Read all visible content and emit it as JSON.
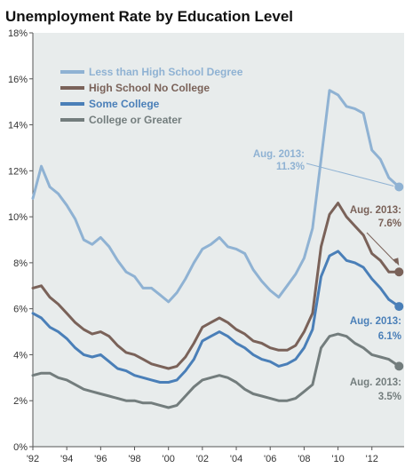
{
  "chart_data": {
    "type": "line",
    "title": "Unemployment Rate by Education Level",
    "xlabel": "",
    "ylabel": "",
    "xlim": [
      1992,
      2013.9
    ],
    "ylim": [
      0,
      18
    ],
    "y_ticks": [
      0,
      2,
      4,
      6,
      8,
      10,
      12,
      14,
      16,
      18
    ],
    "y_tick_labels": [
      "0%",
      "2%",
      "4%",
      "6%",
      "8%",
      "10%",
      "12%",
      "14%",
      "16%",
      "18%"
    ],
    "x_ticks": [
      1992,
      1994,
      1996,
      1998,
      2000,
      2002,
      2004,
      2006,
      2008,
      2010,
      2012
    ],
    "x_tick_labels": [
      "'92",
      "'94",
      "'96",
      "'98",
      "'00",
      "'02",
      "'04",
      "'06",
      "'08",
      "'10",
      "'12"
    ],
    "grid": false,
    "legend_position": "top-left",
    "series": [
      {
        "name": "Less than High School Degree",
        "color": "#8fb2d3",
        "x": [
          1992,
          1992.5,
          1993,
          1993.5,
          1994,
          1994.5,
          1995,
          1995.5,
          1996,
          1996.5,
          1997,
          1997.5,
          1998,
          1998.5,
          1999,
          1999.5,
          2000,
          2000.5,
          2001,
          2001.5,
          2002,
          2002.5,
          2003,
          2003.5,
          2004,
          2004.5,
          2005,
          2005.5,
          2006,
          2006.5,
          2007,
          2007.5,
          2008,
          2008.5,
          2009,
          2009.5,
          2010,
          2010.5,
          2011,
          2011.5,
          2012,
          2012.5,
          2013,
          2013.6
        ],
        "y": [
          10.8,
          12.2,
          11.3,
          11.0,
          10.5,
          9.9,
          9.0,
          8.8,
          9.1,
          8.7,
          8.1,
          7.6,
          7.4,
          6.9,
          6.9,
          6.6,
          6.3,
          6.7,
          7.3,
          8.0,
          8.6,
          8.8,
          9.1,
          8.7,
          8.6,
          8.4,
          7.7,
          7.2,
          6.8,
          6.5,
          7.0,
          7.5,
          8.2,
          9.5,
          12.5,
          15.5,
          15.3,
          14.8,
          14.7,
          14.5,
          12.9,
          12.5,
          11.7,
          11.3
        ]
      },
      {
        "name": "High School No College",
        "color": "#7a6259",
        "x": [
          1992,
          1992.5,
          1993,
          1993.5,
          1994,
          1994.5,
          1995,
          1995.5,
          1996,
          1996.5,
          1997,
          1997.5,
          1998,
          1998.5,
          1999,
          1999.5,
          2000,
          2000.5,
          2001,
          2001.5,
          2002,
          2002.5,
          2003,
          2003.5,
          2004,
          2004.5,
          2005,
          2005.5,
          2006,
          2006.5,
          2007,
          2007.5,
          2008,
          2008.5,
          2009,
          2009.5,
          2010,
          2010.5,
          2011,
          2011.5,
          2012,
          2012.5,
          2013,
          2013.6
        ],
        "y": [
          6.9,
          7.0,
          6.5,
          6.2,
          5.8,
          5.4,
          5.1,
          4.9,
          5.0,
          4.8,
          4.4,
          4.1,
          4.0,
          3.8,
          3.6,
          3.5,
          3.4,
          3.5,
          3.9,
          4.5,
          5.2,
          5.4,
          5.6,
          5.4,
          5.1,
          4.9,
          4.6,
          4.5,
          4.3,
          4.2,
          4.2,
          4.4,
          5.0,
          5.8,
          8.7,
          10.1,
          10.6,
          10.0,
          9.6,
          9.2,
          8.4,
          8.1,
          7.6,
          7.6
        ]
      },
      {
        "name": "Some College",
        "color": "#4a7fb8",
        "x": [
          1992,
          1992.5,
          1993,
          1993.5,
          1994,
          1994.5,
          1995,
          1995.5,
          1996,
          1996.5,
          1997,
          1997.5,
          1998,
          1998.5,
          1999,
          1999.5,
          2000,
          2000.5,
          2001,
          2001.5,
          2002,
          2002.5,
          2003,
          2003.5,
          2004,
          2004.5,
          2005,
          2005.5,
          2006,
          2006.5,
          2007,
          2007.5,
          2008,
          2008.5,
          2009,
          2009.5,
          2010,
          2010.5,
          2011,
          2011.5,
          2012,
          2012.5,
          2013,
          2013.6
        ],
        "y": [
          5.8,
          5.6,
          5.2,
          5.0,
          4.7,
          4.3,
          4.0,
          3.9,
          4.0,
          3.7,
          3.4,
          3.3,
          3.1,
          3.0,
          2.9,
          2.8,
          2.8,
          2.9,
          3.3,
          3.8,
          4.6,
          4.8,
          5.0,
          4.8,
          4.5,
          4.3,
          4.0,
          3.8,
          3.7,
          3.5,
          3.6,
          3.8,
          4.3,
          5.1,
          7.4,
          8.3,
          8.5,
          8.1,
          8.0,
          7.8,
          7.3,
          6.9,
          6.4,
          6.1
        ]
      },
      {
        "name": "College or Greater",
        "color": "#737d7d",
        "x": [
          1992,
          1992.5,
          1993,
          1993.5,
          1994,
          1994.5,
          1995,
          1995.5,
          1996,
          1996.5,
          1997,
          1997.5,
          1998,
          1998.5,
          1999,
          1999.5,
          2000,
          2000.5,
          2001,
          2001.5,
          2002,
          2002.5,
          2003,
          2003.5,
          2004,
          2004.5,
          2005,
          2005.5,
          2006,
          2006.5,
          2007,
          2007.5,
          2008,
          2008.5,
          2009,
          2009.5,
          2010,
          2010.5,
          2011,
          2011.5,
          2012,
          2012.5,
          2013,
          2013.6
        ],
        "y": [
          3.1,
          3.2,
          3.2,
          3.0,
          2.9,
          2.7,
          2.5,
          2.4,
          2.3,
          2.2,
          2.1,
          2.0,
          2.0,
          1.9,
          1.9,
          1.8,
          1.7,
          1.8,
          2.2,
          2.6,
          2.9,
          3.0,
          3.1,
          3.0,
          2.8,
          2.5,
          2.3,
          2.2,
          2.1,
          2.0,
          2.0,
          2.1,
          2.4,
          2.7,
          4.3,
          4.8,
          4.9,
          4.8,
          4.5,
          4.3,
          4.0,
          3.9,
          3.8,
          3.5
        ]
      }
    ],
    "annotations": [
      {
        "series": 0,
        "label": "Aug. 2013:",
        "value_label": "11.3%",
        "x": 2013.6,
        "y": 11.3,
        "color": "#8fb2d3"
      },
      {
        "series": 1,
        "label": "Aug. 2013:",
        "value_label": "7.6%",
        "x": 2013.6,
        "y": 7.6,
        "color": "#7a6259"
      },
      {
        "series": 2,
        "label": "Aug. 2013:",
        "value_label": "6.1%",
        "x": 2013.6,
        "y": 6.1,
        "color": "#4a7fb8"
      },
      {
        "series": 3,
        "label": "Aug. 2013:",
        "value_label": "3.5%",
        "x": 2013.6,
        "y": 3.5,
        "color": "#737d7d"
      }
    ]
  }
}
